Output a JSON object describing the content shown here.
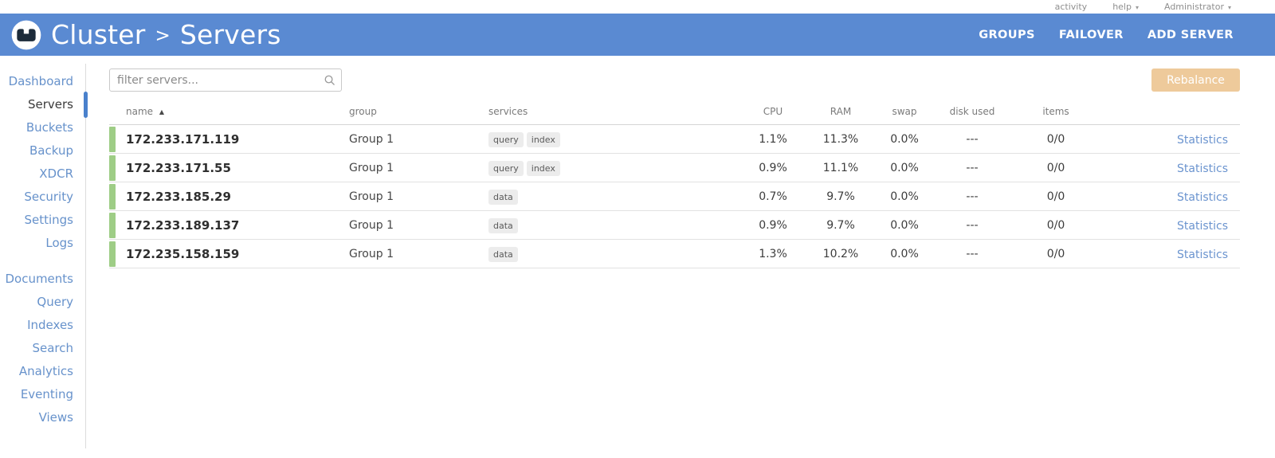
{
  "topbar": {
    "activity": "activity",
    "help": "help",
    "user": "Administrator"
  },
  "header": {
    "cluster": "Cluster",
    "page": "Servers",
    "buttons": {
      "groups": "GROUPS",
      "failover": "FAILOVER",
      "add_server": "ADD SERVER"
    }
  },
  "icons": {
    "caret_down": "▾",
    "sort_asc": "▲",
    "breadcrumb_sep": ">"
  },
  "sidebar": {
    "active": "Servers",
    "groups": [
      [
        "Dashboard",
        "Servers",
        "Buckets",
        "Backup",
        "XDCR",
        "Security",
        "Settings",
        "Logs"
      ],
      [
        "Documents",
        "Query",
        "Indexes",
        "Search",
        "Analytics",
        "Eventing",
        "Views"
      ]
    ]
  },
  "toolbar": {
    "filter_placeholder": "filter servers...",
    "rebalance": "Rebalance"
  },
  "table": {
    "headers": [
      "name",
      "group",
      "services",
      "CPU",
      "RAM",
      "swap",
      "disk used",
      "items"
    ],
    "stats_label": "Statistics",
    "rows": [
      {
        "name": "172.233.171.119",
        "group": "Group 1",
        "services": [
          "query",
          "index"
        ],
        "cpu": "1.1%",
        "ram": "11.3%",
        "swap": "0.0%",
        "disk": "---",
        "items": "0/0"
      },
      {
        "name": "172.233.171.55",
        "group": "Group 1",
        "services": [
          "query",
          "index"
        ],
        "cpu": "0.9%",
        "ram": "11.1%",
        "swap": "0.0%",
        "disk": "---",
        "items": "0/0"
      },
      {
        "name": "172.233.185.29",
        "group": "Group 1",
        "services": [
          "data"
        ],
        "cpu": "0.7%",
        "ram": "9.7%",
        "swap": "0.0%",
        "disk": "---",
        "items": "0/0"
      },
      {
        "name": "172.233.189.137",
        "group": "Group 1",
        "services": [
          "data"
        ],
        "cpu": "0.9%",
        "ram": "9.7%",
        "swap": "0.0%",
        "disk": "---",
        "items": "0/0"
      },
      {
        "name": "172.235.158.159",
        "group": "Group 1",
        "services": [
          "data"
        ],
        "cpu": "1.3%",
        "ram": "10.2%",
        "swap": "0.0%",
        "disk": "---",
        "items": "0/0"
      }
    ]
  },
  "colors": {
    "accent_blue": "#5a8ad2",
    "link_blue": "#6b94cf",
    "healthy_green": "#9ecd86",
    "rebalance_orange": "#eeca9b"
  }
}
